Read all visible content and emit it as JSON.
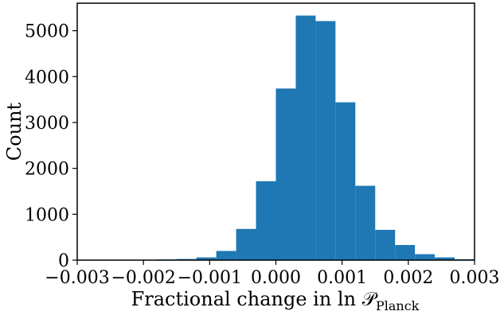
{
  "chart_data": {
    "type": "bar",
    "title": "",
    "xlabel": "Fractional change in ln 𝒫",
    "xlabel_subscript": "Planck",
    "ylabel": "Count",
    "xlim": [
      -0.003,
      0.003
    ],
    "ylim": [
      0,
      5600
    ],
    "xticks": [
      -0.003,
      -0.002,
      -0.001,
      0.0,
      0.001,
      0.002,
      0.003
    ],
    "xtick_labels": [
      "−0.003",
      "−0.002",
      "−0.001",
      "0.000",
      "0.001",
      "0.002",
      "0.003"
    ],
    "yticks": [
      0,
      1000,
      2000,
      3000,
      4000,
      5000
    ],
    "ytick_labels": [
      "0",
      "1000",
      "2000",
      "3000",
      "4000",
      "5000"
    ],
    "bin_edges": [
      -0.003,
      -0.0027,
      -0.0024,
      -0.0021,
      -0.0018,
      -0.0015,
      -0.0012,
      -0.0009,
      -0.0006,
      -0.0003,
      0.0,
      0.0003,
      0.0006,
      0.0009,
      0.0012,
      0.0015,
      0.0018,
      0.0021,
      0.0024,
      0.0027,
      0.003
    ],
    "values": [
      0,
      0,
      0,
      5,
      15,
      25,
      60,
      200,
      680,
      1720,
      3740,
      5330,
      5210,
      3440,
      1620,
      660,
      330,
      130,
      60,
      20
    ],
    "bar_color": "#1f77b4",
    "grid": false,
    "legend": "none"
  }
}
